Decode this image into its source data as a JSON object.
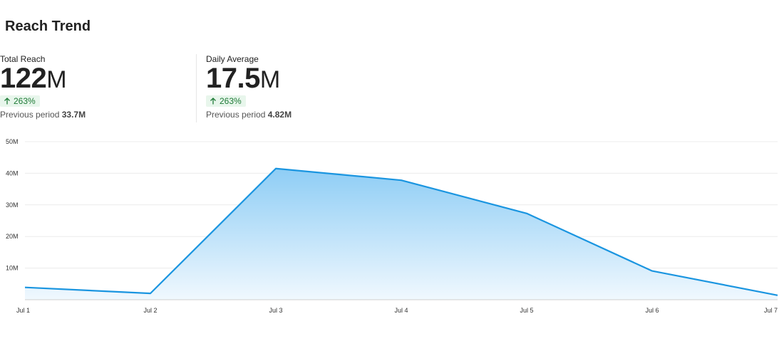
{
  "header": {
    "title": "Reach Trend"
  },
  "metrics": [
    {
      "label": "Total Reach",
      "value": "122",
      "unit": "M",
      "delta": "263%",
      "previous_label": "Previous period",
      "previous_value": "33.7M"
    },
    {
      "label": "Daily Average",
      "value": "17.5",
      "unit": "M",
      "delta": "263%",
      "previous_label": "Previous period",
      "previous_value": "4.82M"
    }
  ],
  "colors": {
    "line": "#1a95e0",
    "fill_top": "#8ecdf5",
    "fill_bottom": "#f0f8fe",
    "delta_bg": "#e8f6ec",
    "delta_text": "#1e7a36"
  },
  "chart_data": {
    "type": "area",
    "title": "",
    "xlabel": "",
    "ylabel": "",
    "x": [
      "Jul 1",
      "Jul 2",
      "Jul 3",
      "Jul 4",
      "Jul 5",
      "Jul 6",
      "Jul 7"
    ],
    "series": [
      {
        "values": [
          3.9,
          2.0,
          41.5,
          37.8,
          27.3,
          9.1,
          1.4
        ]
      }
    ],
    "y_ticks": [
      10,
      20,
      30,
      40,
      50
    ],
    "y_tick_labels": [
      "10M",
      "20M",
      "30M",
      "40M",
      "50M"
    ],
    "ylim": [
      0,
      50
    ],
    "grid": true,
    "legend": "none"
  }
}
